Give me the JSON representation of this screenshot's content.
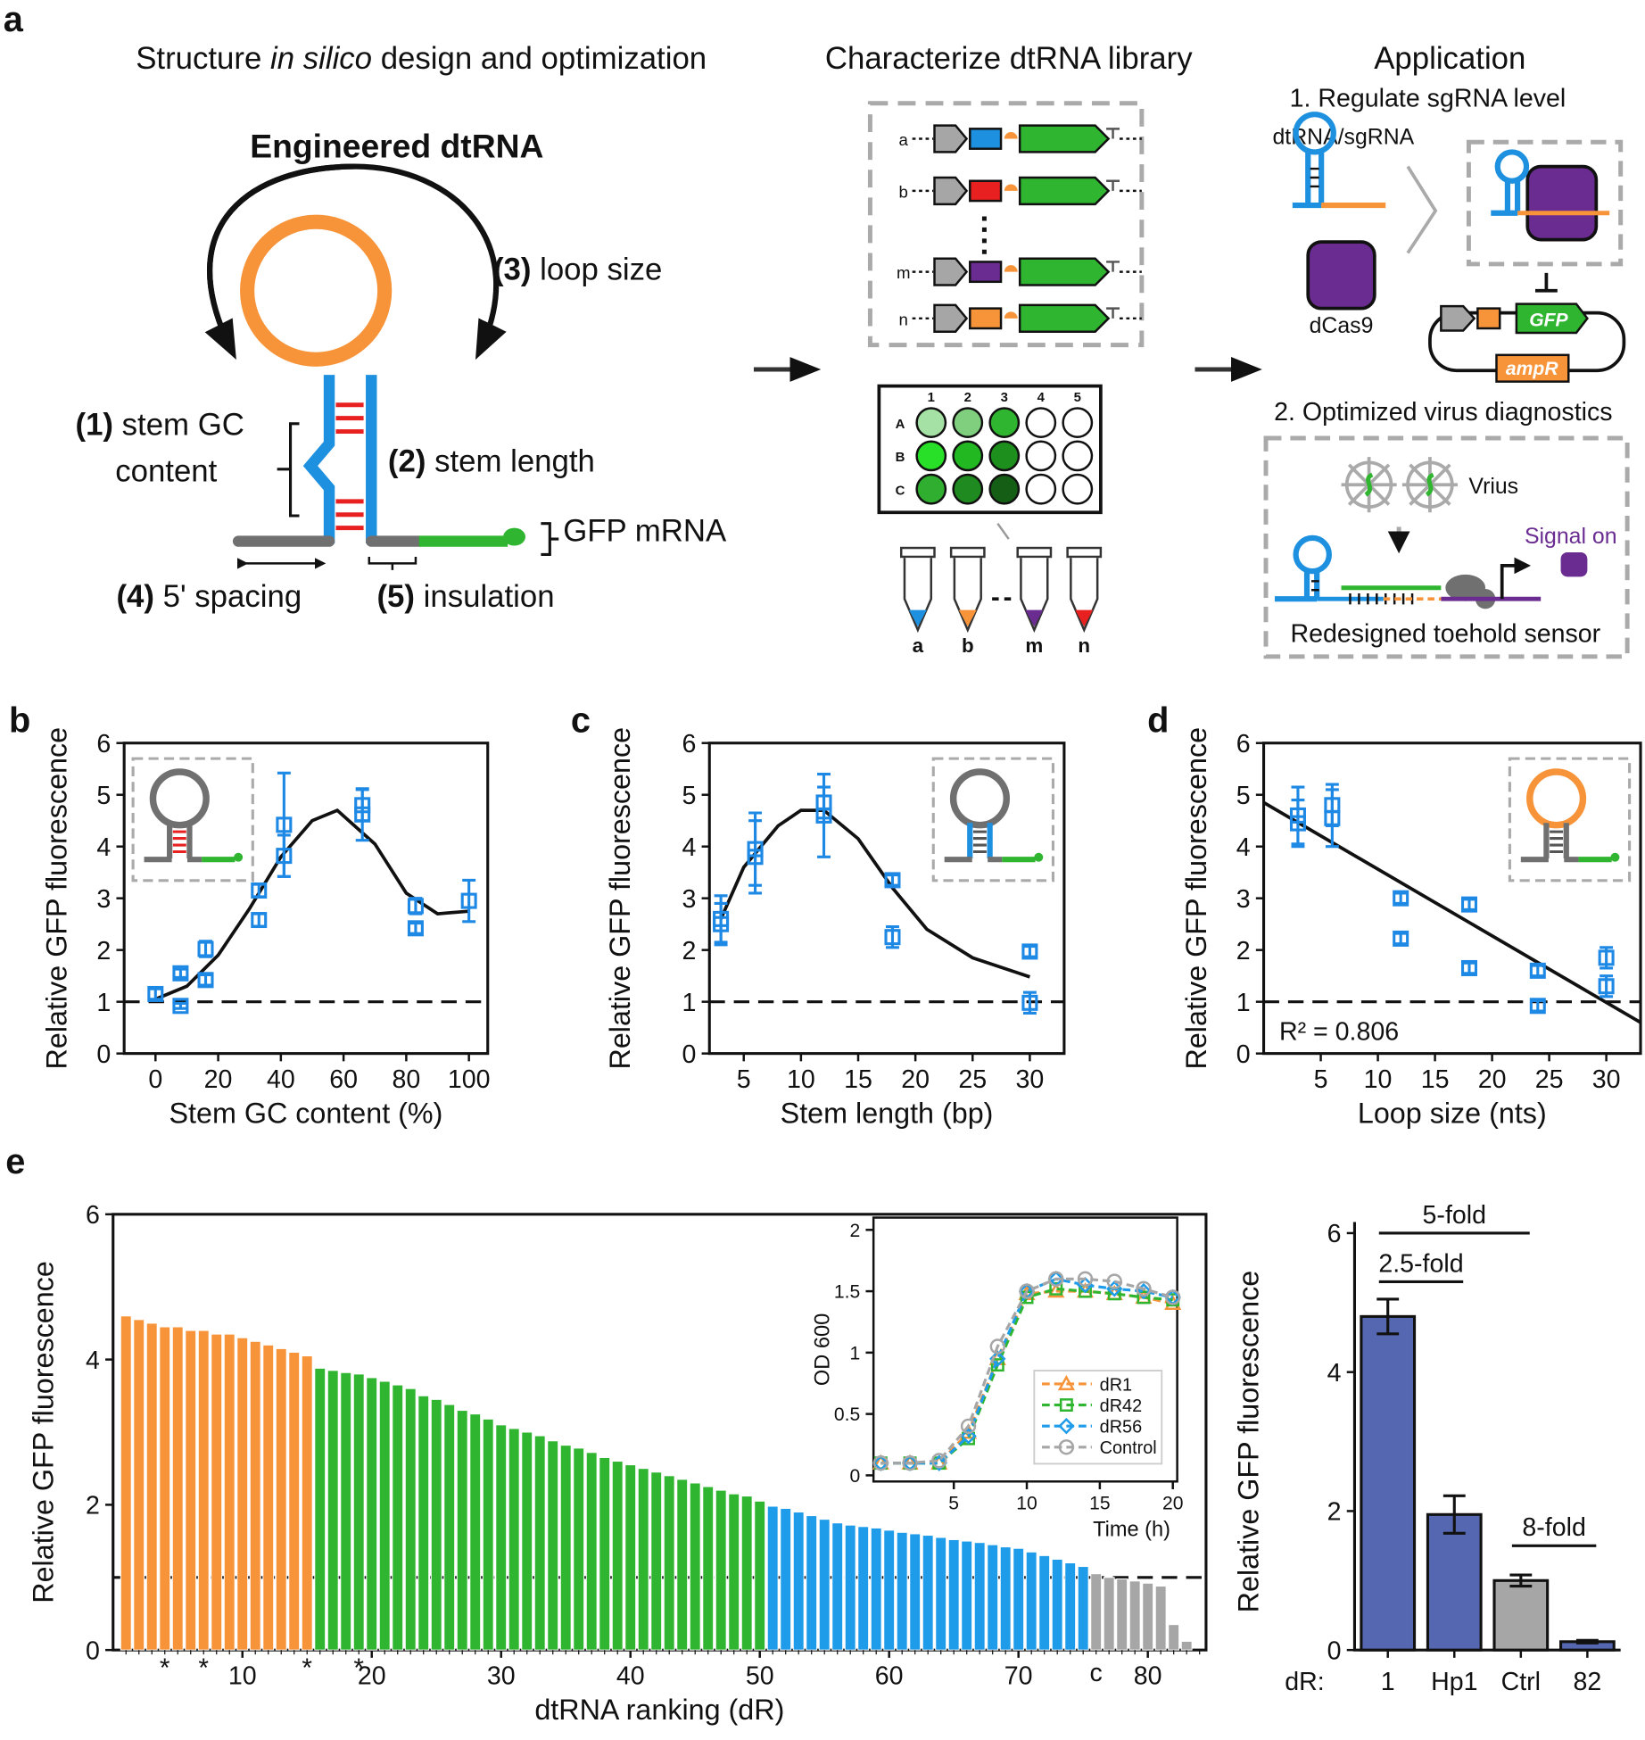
{
  "panel_a": {
    "label": "a",
    "design": {
      "title": [
        "Structure ",
        "in silico",
        " design and optimization"
      ],
      "name": "Engineered dtRNA",
      "loop": {
        "number": "(3)",
        "text": " loop size"
      },
      "gc": {
        "number": "(1)",
        "text": " stem GC",
        "text2": "content"
      },
      "stem": {
        "number": "(2)",
        "text": " stem length"
      },
      "mrna": "GFP mRNA",
      "spacing": {
        "number": "(4)",
        "text": " 5' spacing"
      },
      "insulation": {
        "number": "(5)",
        "text": " insulation"
      }
    },
    "library": {
      "title": "Characterize dtRNA library",
      "rows": [
        "a",
        "b",
        "m",
        "n"
      ],
      "plate_columns": [
        "1",
        "2",
        "3",
        "4",
        "5"
      ],
      "plate_rows": [
        "A",
        "B",
        "C"
      ],
      "tubes": [
        "a",
        "b",
        "m",
        "n"
      ]
    },
    "application": {
      "title": "Application",
      "step1": "1. Regulate sgRNA level",
      "guide": "dtRNA/sgRNA",
      "protein": "dCas9",
      "reporter": "GFP",
      "resistance": "ampR",
      "step2": "2. Optimized virus diagnostics",
      "virus": "Vrius",
      "signal": "Signal on",
      "sensor": "Redesigned toehold sensor"
    }
  },
  "chart_data": [
    {
      "type": "scatter",
      "panel": "b",
      "ylabel": "Relative GFP fluorescence",
      "xlabel": "Stem GC content (%)",
      "color": "#1e88e5",
      "x": [
        0,
        8,
        8,
        16,
        16,
        33,
        33,
        41,
        41,
        66,
        66,
        83,
        83,
        100
      ],
      "values": [
        1.15,
        0.92,
        1.55,
        2.02,
        1.42,
        3.15,
        2.58,
        4.42,
        3.82,
        4.8,
        4.62,
        2.85,
        2.42,
        2.95
      ],
      "errors": [
        0.1,
        0.05,
        0.08,
        0.15,
        0.1,
        0.12,
        0.12,
        1.0,
        0.4,
        0.3,
        0.5,
        0.15,
        0.1,
        0.4
      ],
      "fit_x": [
        0,
        10,
        20,
        30,
        40,
        50,
        58,
        70,
        80,
        90,
        100
      ],
      "fit_values": [
        1.05,
        1.3,
        1.9,
        2.8,
        3.8,
        4.5,
        4.7,
        4.05,
        3.1,
        2.7,
        2.75
      ],
      "reference_line": 1,
      "xlim": [
        -10,
        106
      ],
      "xticks": [
        0,
        20,
        40,
        60,
        80,
        100
      ],
      "ylim": [
        0,
        6
      ],
      "yticks": [
        0,
        1,
        2,
        3,
        4,
        5,
        6
      ]
    },
    {
      "type": "scatter",
      "panel": "c",
      "ylabel": "Relative GFP fluorescence",
      "xlabel": "Stem length (bp)",
      "color": "#1e88e5",
      "x": [
        3,
        3,
        6,
        6,
        12,
        12,
        18,
        18,
        30,
        30
      ],
      "values": [
        2.6,
        2.5,
        3.95,
        3.8,
        4.85,
        4.6,
        3.35,
        2.25,
        1.97,
        0.98
      ],
      "errors": [
        0.45,
        0.4,
        0.7,
        0.7,
        0.3,
        0.8,
        0.1,
        0.2,
        0.1,
        0.2
      ],
      "fit_x": [
        3,
        5,
        8,
        10,
        12,
        15,
        18,
        21,
        25,
        30
      ],
      "fit_values": [
        2.6,
        3.6,
        4.4,
        4.7,
        4.7,
        4.15,
        3.2,
        2.4,
        1.85,
        1.48
      ],
      "reference_line": 1,
      "xlim": [
        2,
        33
      ],
      "xticks": [
        5,
        10,
        15,
        20,
        25,
        30
      ],
      "ylim": [
        0,
        6
      ],
      "yticks": [
        0,
        1,
        2,
        3,
        4,
        5,
        6
      ]
    },
    {
      "type": "scatter",
      "panel": "d",
      "ylabel": "Relative GFP fluorescence",
      "xlabel": "Loop size (nts)",
      "color": "#1e88e5",
      "x": [
        3,
        3,
        6,
        6,
        12,
        12,
        18,
        18,
        24,
        24,
        30,
        30
      ],
      "values": [
        4.6,
        4.45,
        4.8,
        4.55,
        3.0,
        2.22,
        2.88,
        1.65,
        1.6,
        0.92,
        1.85,
        1.3
      ],
      "errors": [
        0.55,
        0.45,
        0.4,
        0.55,
        0.1,
        0.1,
        0.1,
        0.1,
        0.1,
        0.1,
        0.2,
        0.2
      ],
      "fit_x": [
        0,
        33
      ],
      "fit_values": [
        4.85,
        0.6
      ],
      "annotation": "R² = 0.806",
      "reference_line": 1,
      "xlim": [
        0,
        33
      ],
      "xticks": [
        5,
        10,
        15,
        20,
        25,
        30
      ],
      "ylim": [
        0,
        6
      ],
      "yticks": [
        0,
        1,
        2,
        3,
        4,
        5,
        6
      ]
    },
    {
      "type": "bar",
      "panel": "e",
      "ylabel": "Relative GFP fluorescence",
      "xlabel": "dtRNA ranking (dR)",
      "series": [
        {
          "color": "#f7943a",
          "x": [
            1,
            2,
            3,
            4,
            5,
            6,
            7,
            8,
            9,
            10,
            11,
            12,
            13,
            14,
            15
          ],
          "values": [
            4.6,
            4.55,
            4.5,
            4.45,
            4.45,
            4.4,
            4.4,
            4.35,
            4.35,
            4.3,
            4.25,
            4.2,
            4.15,
            4.1,
            4.05
          ]
        },
        {
          "color": "#2fb52f",
          "x": [
            16,
            17,
            18,
            19,
            20,
            21,
            22,
            23,
            24,
            25,
            26,
            27,
            28,
            29,
            30,
            31,
            32,
            33,
            34,
            35,
            36,
            37,
            38,
            39,
            40,
            41,
            42,
            43,
            44,
            45,
            46,
            47,
            48,
            49,
            50
          ],
          "values": [
            3.88,
            3.85,
            3.82,
            3.8,
            3.75,
            3.7,
            3.65,
            3.6,
            3.5,
            3.45,
            3.38,
            3.3,
            3.25,
            3.18,
            3.1,
            3.05,
            3.0,
            2.95,
            2.88,
            2.82,
            2.78,
            2.72,
            2.65,
            2.6,
            2.55,
            2.5,
            2.45,
            2.4,
            2.35,
            2.3,
            2.25,
            2.2,
            2.15,
            2.12,
            2.05
          ]
        },
        {
          "color": "#1e9be9",
          "x": [
            51,
            52,
            53,
            54,
            55,
            56,
            57,
            58,
            59,
            60,
            61,
            62,
            63,
            64,
            65,
            66,
            67,
            68,
            69,
            70,
            71,
            72,
            73,
            74,
            75
          ],
          "values": [
            1.98,
            1.95,
            1.9,
            1.85,
            1.8,
            1.75,
            1.72,
            1.7,
            1.68,
            1.65,
            1.62,
            1.6,
            1.58,
            1.55,
            1.52,
            1.5,
            1.48,
            1.45,
            1.42,
            1.4,
            1.35,
            1.3,
            1.25,
            1.2,
            1.15
          ]
        },
        {
          "color": "#a6a6a6",
          "x": [
            76,
            77,
            78,
            79,
            80,
            81,
            82,
            83
          ],
          "values": [
            1.05,
            1.0,
            0.98,
            0.95,
            0.92,
            0.88,
            0.35,
            0.12
          ]
        }
      ],
      "stars": {
        "x": [
          4,
          7,
          15,
          19
        ],
        "label": "*"
      },
      "control": {
        "x": 76,
        "label": "c"
      },
      "reference_line": 1,
      "xlim": [
        0,
        84.5
      ],
      "xticks": [
        10,
        20,
        30,
        40,
        50,
        60,
        70,
        80
      ],
      "ylim": [
        0,
        6
      ],
      "yticks": [
        0,
        2,
        4,
        6
      ]
    },
    {
      "type": "line",
      "ylabel": "OD 600",
      "xlabel": "Time (h)",
      "x": [
        0,
        2,
        4,
        6,
        8,
        10,
        12,
        14,
        16,
        18,
        20
      ],
      "series": [
        {
          "name": "dR1",
          "color": "#f7943a",
          "marker": "triangle",
          "values": [
            0.1,
            0.1,
            0.1,
            0.35,
            0.95,
            1.48,
            1.5,
            1.5,
            1.48,
            1.45,
            1.4
          ]
        },
        {
          "name": "dR42",
          "color": "#2fb52f",
          "marker": "square",
          "values": [
            0.1,
            0.1,
            0.1,
            0.3,
            0.9,
            1.45,
            1.52,
            1.5,
            1.48,
            1.45,
            1.43
          ]
        },
        {
          "name": "dR56",
          "color": "#1e9be9",
          "marker": "diamond",
          "values": [
            0.1,
            0.1,
            0.1,
            0.32,
            0.95,
            1.5,
            1.6,
            1.55,
            1.52,
            1.5,
            1.45
          ]
        },
        {
          "name": "Control",
          "color": "#a6a6a6",
          "marker": "circle",
          "values": [
            0.1,
            0.1,
            0.12,
            0.4,
            1.05,
            1.5,
            1.6,
            1.6,
            1.58,
            1.52,
            1.45
          ]
        }
      ],
      "xlim": [
        -0.5,
        20.3
      ],
      "xticks": [
        5,
        10,
        15,
        20
      ],
      "ylim": [
        -0.05,
        2.1
      ],
      "yticks": [
        0,
        0.5,
        1,
        1.5,
        2
      ]
    },
    {
      "type": "bar",
      "ylabel": "Relative GFP fluorescence",
      "category_prefix": "dR:",
      "categories": [
        "1",
        "Hp1",
        "Ctrl",
        "82"
      ],
      "values": [
        4.8,
        1.95,
        1.0,
        0.12
      ],
      "errors": [
        0.25,
        0.27,
        0.08,
        0.02
      ],
      "colors": [
        "#5567b0",
        "#5567b0",
        "#a6a6a6",
        "#5567b0"
      ],
      "brackets": [
        {
          "between": [
            "1",
            "Ctrl"
          ],
          "label": "5-fold"
        },
        {
          "between": [
            "1",
            "Hp1"
          ],
          "label": "2.5-fold"
        },
        {
          "between": [
            "Ctrl",
            "82"
          ],
          "label": "8-fold"
        }
      ],
      "ylim": [
        0,
        6
      ],
      "yticks": [
        0,
        2,
        4,
        6
      ]
    }
  ]
}
